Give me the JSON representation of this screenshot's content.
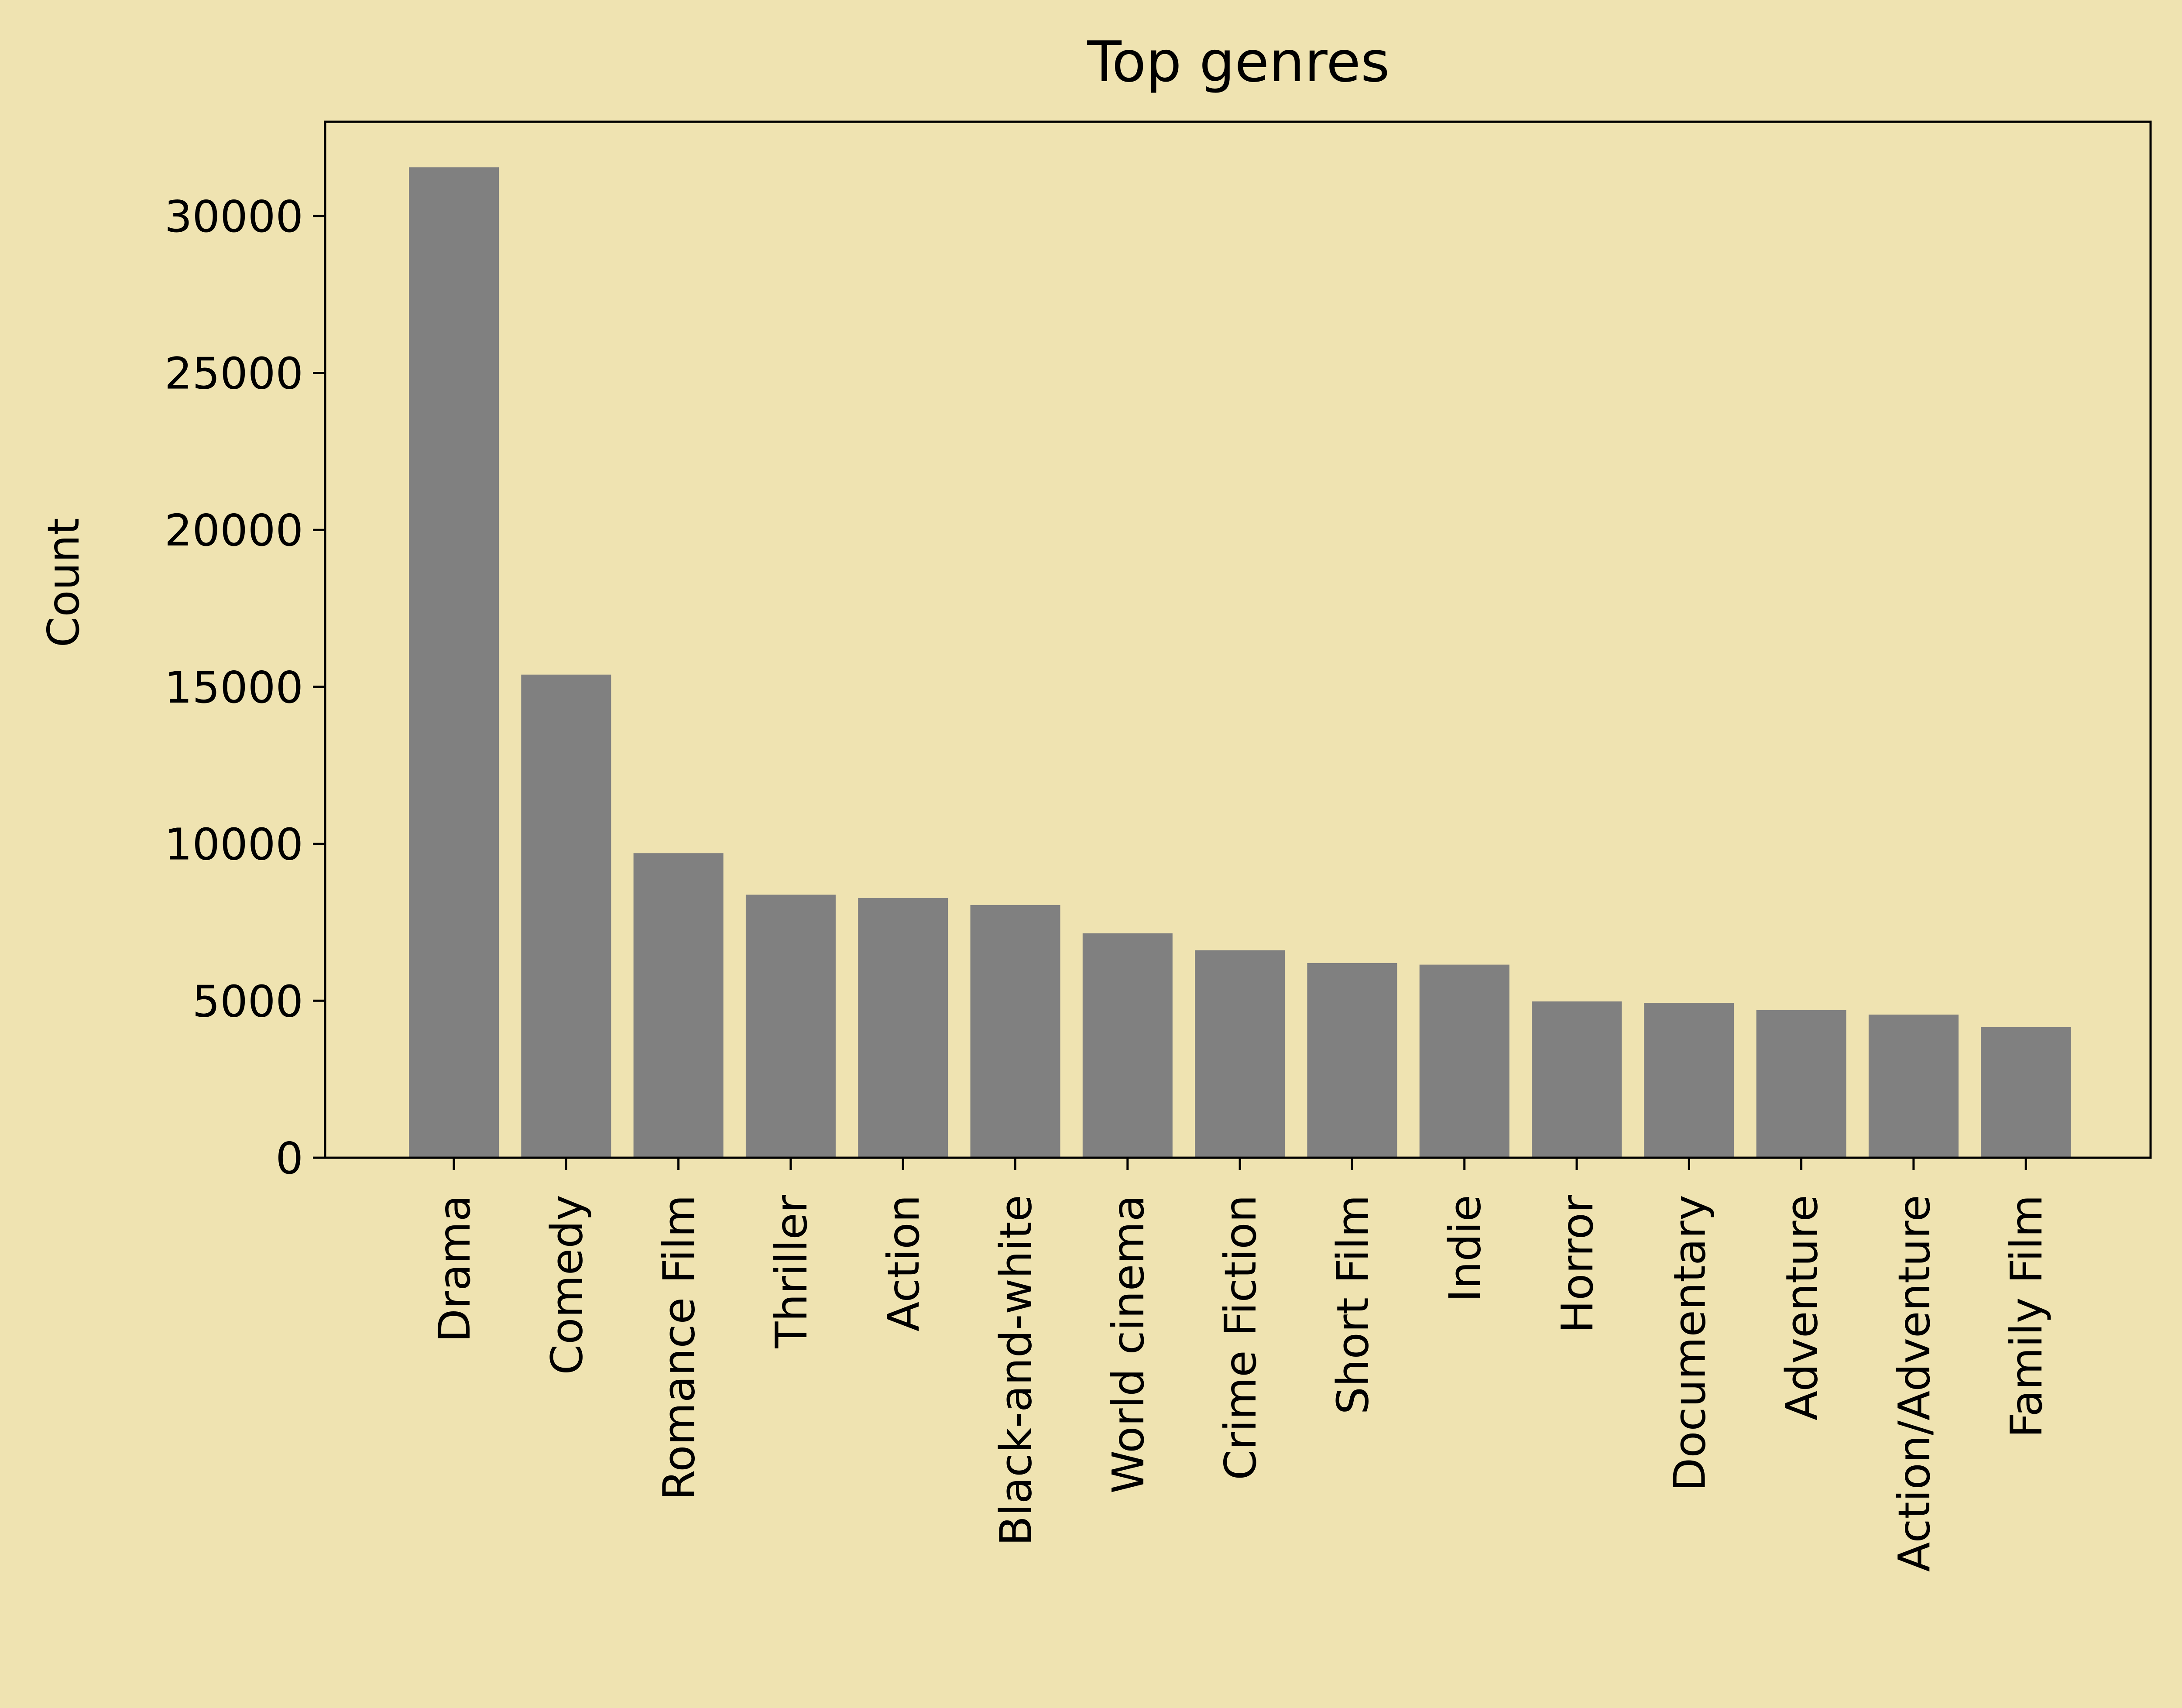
{
  "chart_data": {
    "type": "bar",
    "title": "Top genres",
    "xlabel": "",
    "ylabel": "Count",
    "categories": [
      "Drama",
      "Comedy",
      "Romance Film",
      "Thriller",
      "Action",
      "Black-and-white",
      "World cinema",
      "Crime Fiction",
      "Short Film",
      "Indie",
      "Horror",
      "Documentary",
      "Adventure",
      "Action/Adventure",
      "Family Film"
    ],
    "values": [
      31550,
      15390,
      9700,
      8380,
      8270,
      8050,
      7150,
      6610,
      6200,
      6150,
      4980,
      4930,
      4700,
      4560,
      4160
    ],
    "ylim": [
      0,
      33000
    ],
    "yticks": [
      0,
      5000,
      10000,
      15000,
      20000,
      25000,
      30000
    ],
    "ytick_labels": [
      "0",
      "5000",
      "10000",
      "15000",
      "20000",
      "25000",
      "30000"
    ],
    "grid": false,
    "colors": {
      "background": "#efe3b1",
      "bar": "#808080",
      "axis": "#000000"
    }
  }
}
